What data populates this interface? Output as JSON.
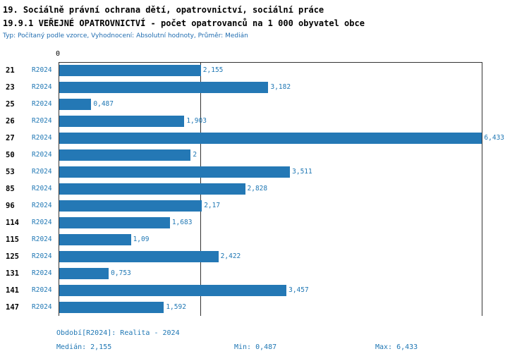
{
  "title": {
    "line1": "19. Sociálně právní ochrana dětí, opatrovnictví, sociální práce",
    "line2": "19.9.1 VEŘEJNÉ OPATROVNICTVÍ - počet opatrovanců na 1 000 obyvatel obce",
    "subtitle": "Typ: Počítaný podle vzorce, Vyhodnocení: Absolutní hodnoty, Průměr: Medián"
  },
  "chart_data": {
    "type": "bar",
    "orientation": "horizontal",
    "series_label": "R2024",
    "bar_color": "#2478b5",
    "axis": {
      "zero_label": "0",
      "xmin": 0,
      "xmax": 6.45,
      "median": 2.155
    },
    "categories": [
      "21",
      "23",
      "25",
      "26",
      "27",
      "50",
      "53",
      "85",
      "96",
      "114",
      "115",
      "125",
      "131",
      "141",
      "147"
    ],
    "values": [
      2.155,
      3.182,
      0.487,
      1.903,
      6.433,
      2,
      3.511,
      2.828,
      2.17,
      1.683,
      1.09,
      2.422,
      0.753,
      3.457,
      1.592
    ],
    "value_labels": [
      "2,155",
      "3,182",
      "0,487",
      "1,903",
      "6,433",
      "2",
      "3,511",
      "2,828",
      "2,17",
      "1,683",
      "1,09",
      "2,422",
      "0,753",
      "3,457",
      "1,592"
    ],
    "title": "19.9.1 VEŘEJNÉ OPATROVNICTVÍ - počet opatrovanců na 1 000 obyvatel obce",
    "xlabel": "",
    "ylabel": "",
    "legend_position": "none",
    "grid": "median-line-only"
  },
  "footer": {
    "period": "Období[R2024]: Realita - 2024",
    "median": "Medián: 2,155",
    "min": "Min: 0,487",
    "max": "Max: 6,433"
  }
}
